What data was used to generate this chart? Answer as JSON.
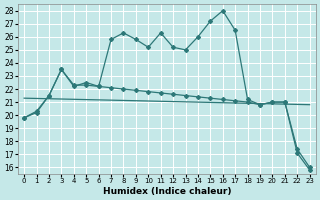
{
  "xlabel": "Humidex (Indice chaleur)",
  "bg_color": "#c5e8e8",
  "grid_color": "#ffffff",
  "line_color": "#2d7878",
  "xlim": [
    -0.5,
    23.5
  ],
  "ylim": [
    15.5,
    28.5
  ],
  "yticks": [
    16,
    17,
    18,
    19,
    20,
    21,
    22,
    23,
    24,
    25,
    26,
    27,
    28
  ],
  "xticks": [
    0,
    1,
    2,
    3,
    4,
    5,
    6,
    7,
    8,
    9,
    10,
    11,
    12,
    13,
    14,
    15,
    16,
    17,
    18,
    19,
    20,
    21,
    22,
    23
  ],
  "line1_x": [
    0,
    1,
    2,
    3,
    4,
    5,
    6,
    7,
    8,
    9,
    10,
    11,
    12,
    13,
    14,
    15,
    16,
    17,
    18,
    19,
    20,
    21,
    22,
    23
  ],
  "line1_y": [
    19.8,
    20.3,
    21.5,
    23.5,
    22.2,
    22.5,
    22.2,
    25.8,
    26.3,
    25.8,
    25.2,
    26.3,
    25.2,
    25.0,
    26.0,
    27.2,
    28.0,
    26.5,
    21.2,
    20.8,
    21.0,
    21.0,
    17.4,
    16.0
  ],
  "line2_x": [
    0,
    1,
    2,
    3,
    4,
    5,
    6,
    7,
    8,
    9,
    10,
    11,
    12,
    13,
    14,
    15,
    16,
    17,
    18,
    19,
    20,
    21,
    22,
    23
  ],
  "line2_y": [
    19.8,
    20.2,
    21.5,
    23.5,
    22.3,
    22.3,
    22.2,
    22.1,
    22.0,
    21.9,
    21.8,
    21.7,
    21.6,
    21.5,
    21.4,
    21.3,
    21.2,
    21.1,
    21.0,
    20.8,
    21.0,
    21.0,
    17.1,
    15.8
  ],
  "line3_x": [
    0,
    23
  ],
  "line3_y": [
    21.3,
    20.8
  ]
}
